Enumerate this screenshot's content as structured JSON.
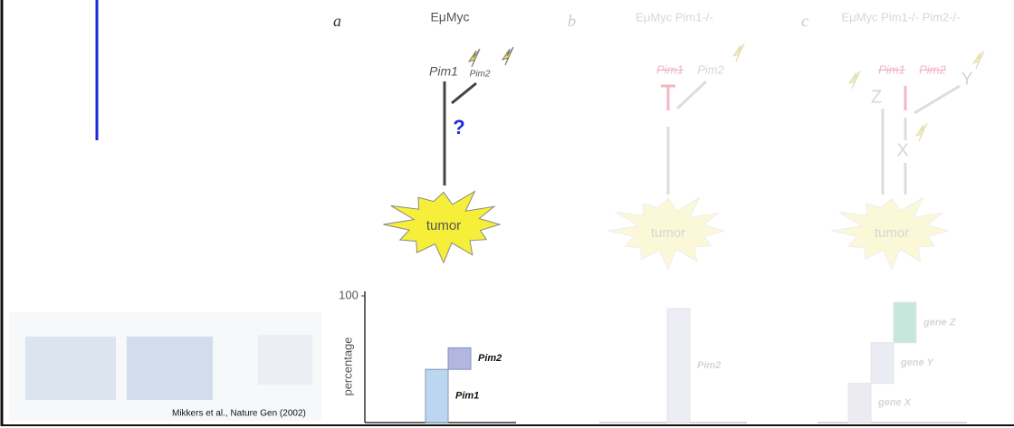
{
  "citation": "Mikkers et al., Nature Gen (2002)",
  "axis": {
    "max": 100,
    "label": "percentage"
  },
  "panels": [
    {
      "letter": "a",
      "title": "EμMyc",
      "genes": [
        "Pim1",
        "Pim2"
      ],
      "question": "?",
      "outcome": "tumor",
      "stacked": true,
      "bars": [
        {
          "label": "Pim1",
          "value": 42,
          "color": "#bcd6ef"
        },
        {
          "label": "Pim2",
          "value": 17,
          "color": "#b3b6de"
        }
      ]
    },
    {
      "letter": "b",
      "title": "EμMyc Pim1-/-",
      "genes": [
        "Pim1",
        "Pim2"
      ],
      "outcome": "tumor",
      "stacked": true,
      "bars": [
        {
          "label": "Pim2",
          "value": 90,
          "color": "#ededf6"
        }
      ]
    },
    {
      "letter": "c",
      "title": "EμMyc Pim1-/- Pim2-/-",
      "genes": [
        "Pim1",
        "Pim2"
      ],
      "factors": [
        "Z",
        "Y",
        "X"
      ],
      "outcome": "tumor",
      "stacked": true,
      "bars": [
        {
          "label": "gene X",
          "value": 31,
          "color": "#ececf0"
        },
        {
          "label": "gene Y",
          "value": 32,
          "color": "#ebebf3"
        },
        {
          "label": "gene Z",
          "value": 32,
          "color": "#c6e8dc"
        }
      ]
    }
  ]
}
